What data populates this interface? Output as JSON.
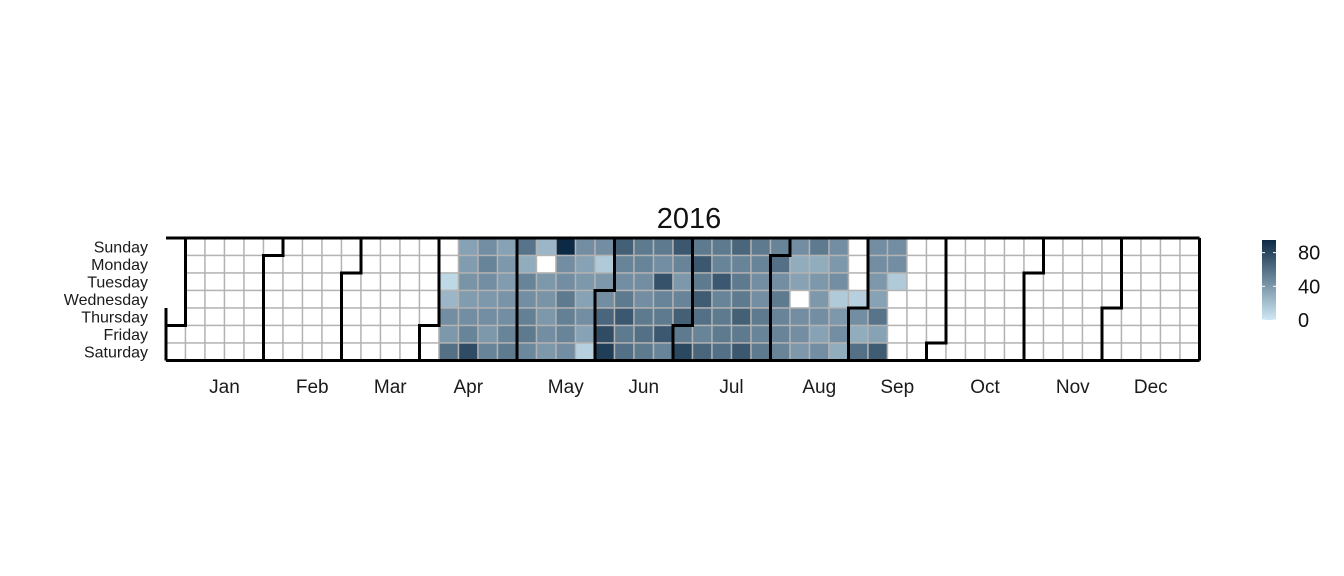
{
  "chart_data": {
    "type": "heatmap",
    "title": "2016",
    "year": 2016,
    "weekdays": [
      "Sunday",
      "Monday",
      "Tuesday",
      "Wednesday",
      "Thursday",
      "Friday",
      "Saturday"
    ],
    "months": [
      "Jan",
      "Feb",
      "Mar",
      "Apr",
      "May",
      "Jun",
      "Jul",
      "Aug",
      "Sep",
      "Oct",
      "Nov",
      "Dec"
    ],
    "legend": {
      "ticks": [
        0,
        40,
        80
      ],
      "min": 0,
      "max": 95,
      "low_color": "#cfe8f5",
      "high_color": "#0c2a45",
      "placement": "right"
    },
    "missing_color": "#ffffff",
    "grid_color": "#b3b3b3",
    "month_border_color": "#000000",
    "values": {
      "2016-04-05": 8,
      "2016-04-06": 25,
      "2016-04-07": 45,
      "2016-04-08": 40,
      "2016-04-09": 60,
      "2016-04-10": 35,
      "2016-04-11": 38,
      "2016-04-12": 42,
      "2016-04-13": 38,
      "2016-04-14": 45,
      "2016-04-15": 50,
      "2016-04-16": 78,
      "2016-04-17": 45,
      "2016-04-18": 50,
      "2016-04-19": 45,
      "2016-04-20": 40,
      "2016-04-21": 45,
      "2016-04-22": 40,
      "2016-04-23": 50,
      "2016-04-24": 35,
      "2016-04-25": 40,
      "2016-04-26": 38,
      "2016-04-27": 42,
      "2016-04-28": 45,
      "2016-04-29": 50,
      "2016-04-30": 55,
      "2016-05-01": 58,
      "2016-05-02": 30,
      "2016-05-03": 50,
      "2016-05-04": 45,
      "2016-05-05": 52,
      "2016-05-06": 55,
      "2016-05-07": 48,
      "2016-05-08": 25,
      "2016-05-10": 40,
      "2016-05-11": 42,
      "2016-05-12": 40,
      "2016-05-13": 45,
      "2016-05-14": 40,
      "2016-05-15": 95,
      "2016-05-16": 45,
      "2016-05-17": 45,
      "2016-05-18": 55,
      "2016-05-19": 52,
      "2016-05-20": 50,
      "2016-05-21": 45,
      "2016-05-22": 45,
      "2016-05-23": 35,
      "2016-05-24": 40,
      "2016-05-25": 35,
      "2016-05-26": 45,
      "2016-05-27": 35,
      "2016-05-28": 12,
      "2016-05-29": 45,
      "2016-05-30": 15,
      "2016-05-31": 40,
      "2016-06-01": 45,
      "2016-06-02": 65,
      "2016-06-03": 78,
      "2016-06-04": 85,
      "2016-06-05": 68,
      "2016-06-06": 50,
      "2016-06-07": 45,
      "2016-06-08": 55,
      "2016-06-09": 72,
      "2016-06-10": 55,
      "2016-06-11": 60,
      "2016-06-12": 55,
      "2016-06-13": 50,
      "2016-06-14": 45,
      "2016-06-15": 45,
      "2016-06-16": 55,
      "2016-06-17": 60,
      "2016-06-18": 55,
      "2016-06-19": 55,
      "2016-06-20": 45,
      "2016-06-21": 75,
      "2016-06-22": 50,
      "2016-06-23": 55,
      "2016-06-24": 72,
      "2016-06-25": 50,
      "2016-06-26": 72,
      "2016-06-27": 50,
      "2016-06-28": 40,
      "2016-06-29": 50,
      "2016-06-30": 68,
      "2016-07-01": 55,
      "2016-07-02": 80,
      "2016-07-03": 55,
      "2016-07-04": 72,
      "2016-07-05": 55,
      "2016-07-06": 70,
      "2016-07-07": 60,
      "2016-07-08": 50,
      "2016-07-09": 65,
      "2016-07-10": 55,
      "2016-07-11": 50,
      "2016-07-12": 72,
      "2016-07-13": 50,
      "2016-07-14": 55,
      "2016-07-15": 55,
      "2016-07-16": 60,
      "2016-07-17": 65,
      "2016-07-18": 50,
      "2016-07-19": 55,
      "2016-07-20": 55,
      "2016-07-21": 68,
      "2016-07-22": 55,
      "2016-07-23": 72,
      "2016-07-24": 55,
      "2016-07-25": 50,
      "2016-07-26": 45,
      "2016-07-27": 45,
      "2016-07-28": 55,
      "2016-07-29": 50,
      "2016-07-30": 55,
      "2016-07-31": 50,
      "2016-08-01": 60,
      "2016-08-02": 45,
      "2016-08-03": 55,
      "2016-08-04": 50,
      "2016-08-05": 50,
      "2016-08-06": 50,
      "2016-08-07": 45,
      "2016-08-08": 30,
      "2016-08-09": 35,
      "2016-08-11": 45,
      "2016-08-12": 45,
      "2016-08-13": 40,
      "2016-08-14": 55,
      "2016-08-15": 30,
      "2016-08-16": 40,
      "2016-08-17": 40,
      "2016-08-18": 45,
      "2016-08-19": 35,
      "2016-08-20": 45,
      "2016-08-21": 45,
      "2016-08-22": 40,
      "2016-08-23": 45,
      "2016-08-24": 15,
      "2016-08-25": 40,
      "2016-08-26": 45,
      "2016-08-27": 30,
      "2016-08-31": 12,
      "2016-09-01": 45,
      "2016-09-02": 30,
      "2016-09-03": 60,
      "2016-09-04": 45,
      "2016-09-05": 45,
      "2016-09-06": 40,
      "2016-09-07": 35,
      "2016-09-08": 58,
      "2016-09-09": 35,
      "2016-09-10": 70,
      "2016-09-11": 45,
      "2016-09-12": 45,
      "2016-09-13": 15
    }
  }
}
